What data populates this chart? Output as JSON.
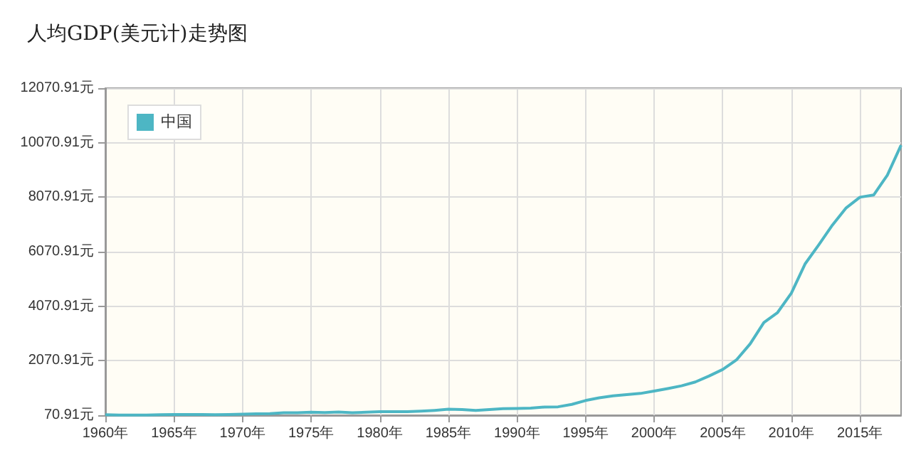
{
  "chart_data": {
    "type": "line",
    "title": "人均GDP(美元计)走势图",
    "x": [
      1960,
      1961,
      1962,
      1963,
      1964,
      1965,
      1966,
      1967,
      1968,
      1969,
      1970,
      1971,
      1972,
      1973,
      1974,
      1975,
      1976,
      1977,
      1978,
      1979,
      1980,
      1981,
      1982,
      1983,
      1984,
      1985,
      1986,
      1987,
      1988,
      1989,
      1990,
      1991,
      1992,
      1993,
      1994,
      1995,
      1996,
      1997,
      1998,
      1999,
      2000,
      2001,
      2002,
      2003,
      2004,
      2005,
      2006,
      2007,
      2008,
      2009,
      2010,
      2011,
      2012,
      2013,
      2014,
      2015,
      2016,
      2017,
      2018
    ],
    "series": [
      {
        "name": "中国",
        "color": "#4db6c4",
        "values": [
          90,
          80,
          80,
          80,
          90,
          100,
          100,
          100,
          90,
          100,
          110,
          120,
          130,
          160,
          160,
          180,
          170,
          190,
          160,
          180,
          200,
          200,
          200,
          220,
          250,
          290,
          280,
          250,
          280,
          310,
          320,
          330,
          370,
          380,
          470,
          610,
          710,
          780,
          830,
          870,
          960,
          1050,
          1150,
          1290,
          1510,
          1750,
          2100,
          2690,
          3470,
          3840,
          4550,
          5620,
          6320,
          7050,
          7680,
          8070,
          8150,
          8880,
          9980
        ]
      }
    ],
    "xlim": [
      1960,
      2018
    ],
    "xticks": [
      {
        "value": 1960,
        "label": "1960年"
      },
      {
        "value": 1965,
        "label": "1965年"
      },
      {
        "value": 1970,
        "label": "1970年"
      },
      {
        "value": 1975,
        "label": "1975年"
      },
      {
        "value": 1980,
        "label": "1980年"
      },
      {
        "value": 1985,
        "label": "1985年"
      },
      {
        "value": 1990,
        "label": "1990年"
      },
      {
        "value": 1995,
        "label": "1995年"
      },
      {
        "value": 2000,
        "label": "2000年"
      },
      {
        "value": 2005,
        "label": "2005年"
      },
      {
        "value": 2010,
        "label": "2010年"
      },
      {
        "value": 2015,
        "label": "2015年"
      }
    ],
    "ylim": [
      70.91,
      12070.91
    ],
    "yticks": [
      {
        "value": 70.91,
        "label": "70.91元"
      },
      {
        "value": 2070.91,
        "label": "2070.91元"
      },
      {
        "value": 4070.91,
        "label": "4070.91元"
      },
      {
        "value": 6070.91,
        "label": "6070.91元"
      },
      {
        "value": 8070.91,
        "label": "8070.91元"
      },
      {
        "value": 10070.91,
        "label": "10070.91元"
      },
      {
        "value": 12070.91,
        "label": "12070.91元"
      }
    ],
    "grid": true,
    "legend": "top left",
    "marker": "none",
    "line_style": "solid"
  }
}
